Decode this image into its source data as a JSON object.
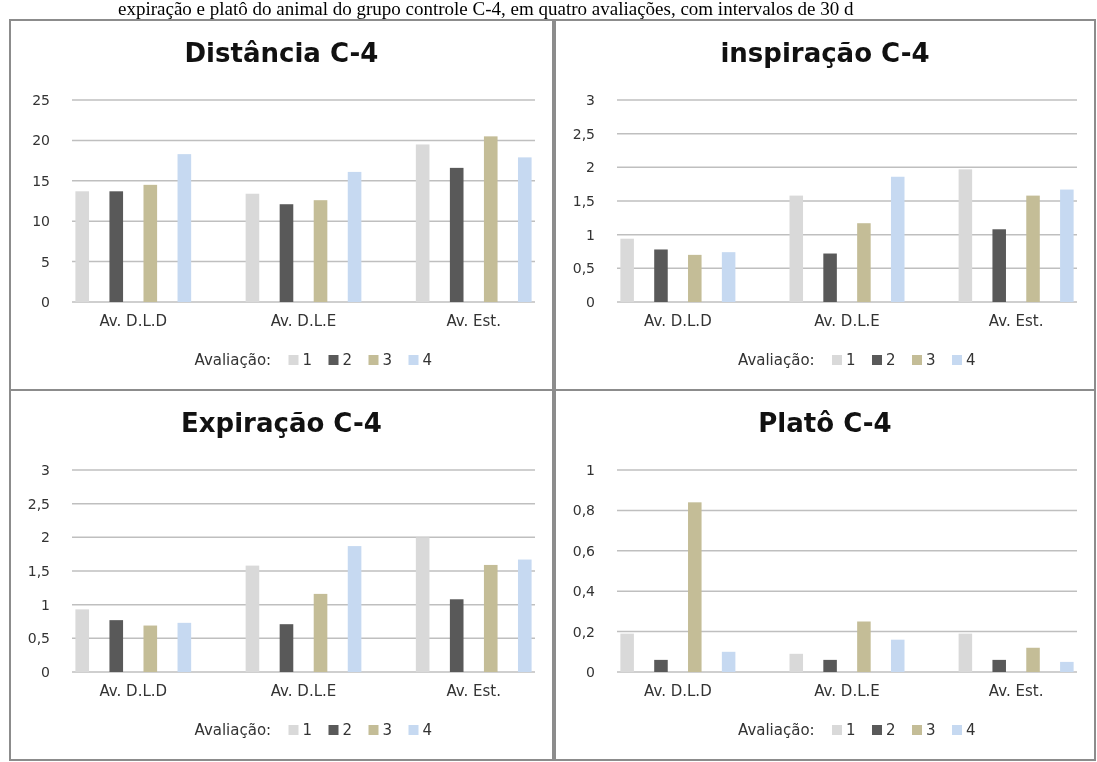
{
  "chart_data": [
    {
      "type": "bar",
      "title": "Distância C-4",
      "annotations": [
        "expiração e platô do animal do grupo controle C-4, em quatro avaliações, com intervalos de 30 d"
      ],
      "categories": [
        "Av. D.L.D",
        "Av. D.L.E",
        "Av. Est."
      ],
      "legend_title": "Avaliação:",
      "legend": "bottom",
      "grid": "y",
      "series": [
        {
          "name": "1",
          "color": "#d9d9d9",
          "values": [
            13.7,
            13.4,
            19.5
          ]
        },
        {
          "name": "2",
          "color": "#595959",
          "values": [
            13.7,
            12.1,
            16.6
          ]
        },
        {
          "name": "3",
          "color": "#c4bd97",
          "values": [
            14.5,
            12.6,
            20.5
          ]
        },
        {
          "name": "4",
          "color": "#c6d9f1",
          "values": [
            18.3,
            16.1,
            17.9
          ]
        }
      ],
      "ylim": [
        0,
        25
      ],
      "yticks": [
        0,
        5,
        10,
        15,
        20,
        25
      ]
    },
    {
      "type": "bar",
      "title": "inspiração C-4",
      "categories": [
        "Av. D.L.D",
        "Av. D.L.E",
        "Av. Est."
      ],
      "legend_title": "Avaliação:",
      "legend": "bottom",
      "grid": "y",
      "series": [
        {
          "name": "1",
          "color": "#d9d9d9",
          "values": [
            0.94,
            1.58,
            1.97
          ]
        },
        {
          "name": "2",
          "color": "#595959",
          "values": [
            0.78,
            0.72,
            1.08
          ]
        },
        {
          "name": "3",
          "color": "#c4bd97",
          "values": [
            0.7,
            1.17,
            1.58
          ]
        },
        {
          "name": "4",
          "color": "#c6d9f1",
          "values": [
            0.74,
            1.86,
            1.67
          ]
        }
      ],
      "ylim": [
        0,
        3
      ],
      "yticks": [
        0,
        {
          "value": 0.5,
          "label": "0,5"
        },
        1,
        {
          "value": 1.5,
          "label": "1,5"
        },
        2,
        {
          "value": 2.5,
          "label": "2,5"
        },
        3
      ]
    },
    {
      "type": "bar",
      "title": "Expiração C-4",
      "categories": [
        "Av. D.L.D",
        "Av. D.L.E",
        "Av. Est."
      ],
      "legend_title": "Avaliação:",
      "legend": "bottom",
      "grid": "y",
      "series": [
        {
          "name": "1",
          "color": "#d9d9d9",
          "values": [
            0.93,
            1.58,
            2.0
          ]
        },
        {
          "name": "2",
          "color": "#595959",
          "values": [
            0.77,
            0.71,
            1.08
          ]
        },
        {
          "name": "3",
          "color": "#c4bd97",
          "values": [
            0.69,
            1.16,
            1.59
          ]
        },
        {
          "name": "4",
          "color": "#c6d9f1",
          "values": [
            0.73,
            1.87,
            1.67
          ]
        }
      ],
      "ylim": [
        0,
        3
      ],
      "yticks": [
        0,
        {
          "value": 0.5,
          "label": "0,5"
        },
        1,
        {
          "value": 1.5,
          "label": "1,5"
        },
        2,
        {
          "value": 2.5,
          "label": "2,5"
        },
        3
      ]
    },
    {
      "type": "bar",
      "title": "Platô C-4",
      "categories": [
        "Av. D.L.D",
        "Av. D.L.E",
        "Av. Est."
      ],
      "legend_title": "Avaliação:",
      "legend": "bottom",
      "grid": "y",
      "series": [
        {
          "name": "1",
          "color": "#d9d9d9",
          "values": [
            0.19,
            0.09,
            0.19
          ]
        },
        {
          "name": "2",
          "color": "#595959",
          "values": [
            0.06,
            0.06,
            0.06
          ]
        },
        {
          "name": "3",
          "color": "#c4bd97",
          "values": [
            0.84,
            0.25,
            0.12
          ]
        },
        {
          "name": "4",
          "color": "#c6d9f1",
          "values": [
            0.1,
            0.16,
            0.05
          ]
        }
      ],
      "ylim": [
        0,
        1
      ],
      "yticks": [
        0,
        {
          "value": 0.2,
          "label": "0,2"
        },
        {
          "value": 0.4,
          "label": "0,4"
        },
        {
          "value": 0.6,
          "label": "0,6"
        },
        {
          "value": 0.8,
          "label": "0,8"
        },
        1
      ]
    }
  ]
}
